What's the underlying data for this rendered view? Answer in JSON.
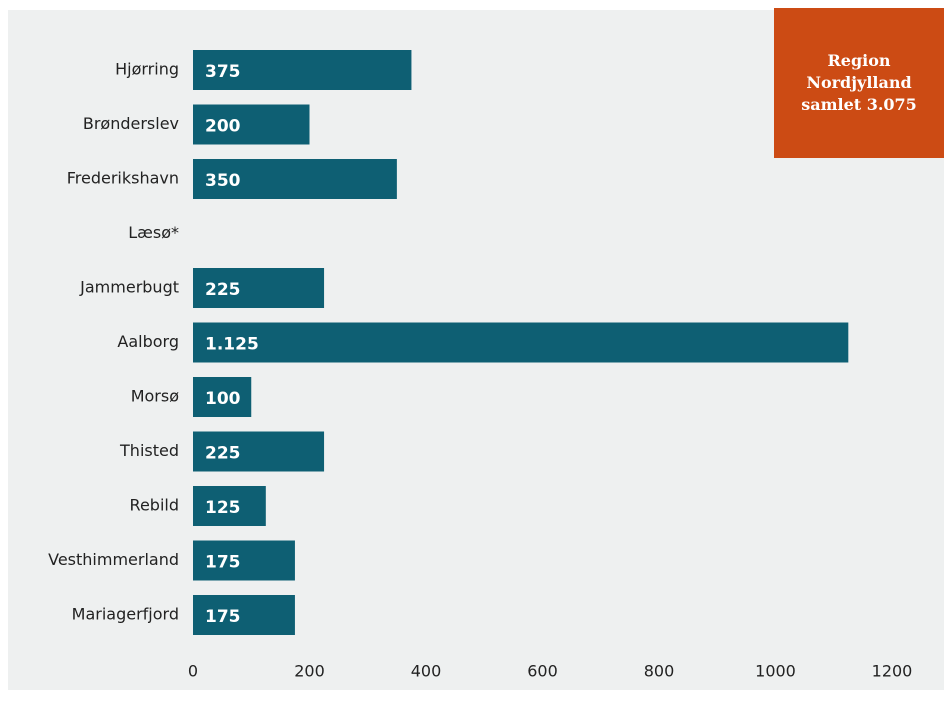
{
  "chart_data": {
    "type": "bar",
    "orientation": "horizontal",
    "categories": [
      "Hjørring",
      "Brønderslev",
      "Frederikshavn",
      "Læsø*",
      "Jammerbugt",
      "Aalborg",
      "Morsø",
      "Thisted",
      "Rebild",
      "Vesthimmerland",
      "Mariagerfjord"
    ],
    "values": [
      375,
      200,
      350,
      null,
      225,
      1125,
      100,
      225,
      125,
      175,
      175
    ],
    "value_labels": [
      "375",
      "200",
      "350",
      null,
      "225",
      "1.125",
      "100",
      "225",
      "125",
      "175",
      "175"
    ],
    "color": "#0e5f73",
    "xlim": [
      0,
      1200
    ],
    "xticks": [
      0,
      200,
      400,
      600,
      800,
      1000,
      1200
    ],
    "annotation": "Region Nordjylland samlet 3.075",
    "annotation_color": "#cc4b14"
  }
}
